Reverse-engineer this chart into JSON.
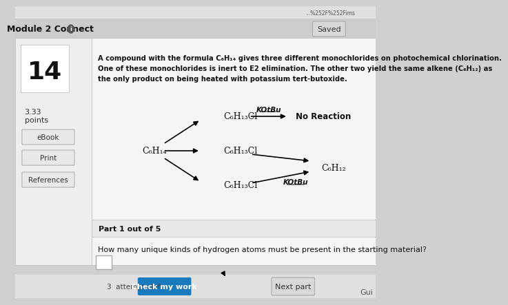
{
  "bg_color": "#d0d0d0",
  "panel_color": "#ffffff",
  "left_panel_color": "#f0f0f0",
  "header_bg": "#c8c8c8",
  "title_bar": "Module 2 Connect",
  "saved_label": "Saved",
  "question_number": "14",
  "points": "3.33\npoints",
  "sidebar_buttons": [
    "eBook",
    "Print",
    "References"
  ],
  "question_text_line1": "A compound with the formula C₆H₁₄ gives three different monochlorides on photochemical chlorination.",
  "question_text_line2": "One of these monochlorides is inert to E2 elimination. The other two yield the same alkene (C₆H₁₂) as",
  "question_text_line3": "the only product on being heated with potassium tert-butoxide.",
  "reactant": "C₆H₁₄",
  "product_top": "C₆H₁₃Cl",
  "product_mid": "C₆H₁₃Cl",
  "product_bot": "C₆H₁₃Cl",
  "reaction_top_reagent": "KOtBu",
  "reaction_top_product": "No Reaction",
  "reaction_bot_reagent": "KOtBu",
  "reaction_bot_product": "C₆H₁₂",
  "part_label": "Part 1 out of 5",
  "sub_question": "How many unique kinds of hydrogen atoms must be present in the starting material?",
  "attempts_left": "3  attempts left",
  "button_check": "Check my work",
  "button_next": "Next part",
  "url_bar_color": "#e8e8e8",
  "url_text": "...%252F%252Fims",
  "saved_btn_color": "#e0e0e0",
  "check_btn_color": "#1a7abf",
  "next_btn_color": "#e0e0e0"
}
